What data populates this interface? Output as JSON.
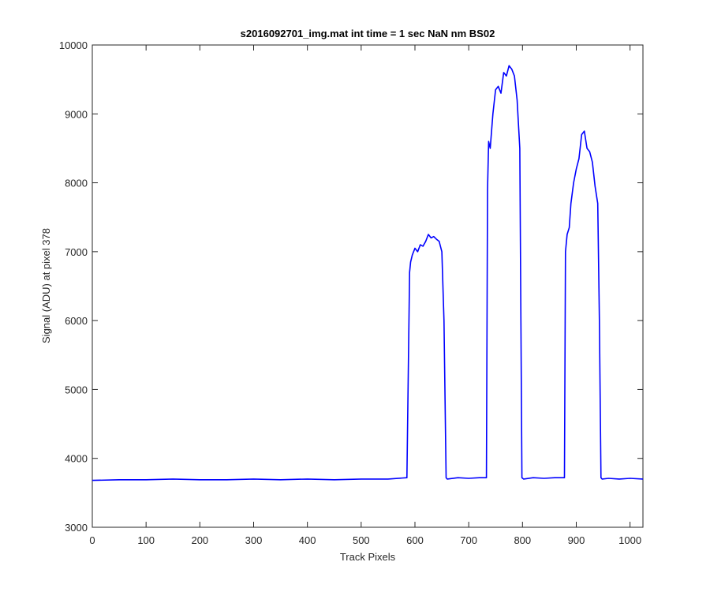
{
  "chart_data": {
    "type": "line",
    "title": "s2016092701_img.mat int time = 1 sec  NaN nm BS02",
    "xlabel": "Track Pixels",
    "ylabel": "Signal (ADU) at pixel 378",
    "xlim": [
      0,
      1024
    ],
    "ylim": [
      3000,
      10000
    ],
    "xticks": [
      0,
      100,
      200,
      300,
      400,
      500,
      600,
      700,
      800,
      900,
      1000
    ],
    "yticks": [
      3000,
      4000,
      5000,
      6000,
      7000,
      8000,
      9000,
      10000
    ],
    "grid": false,
    "legend": "none",
    "series": [
      {
        "color": "#0000ff",
        "x": [
          0,
          50,
          100,
          150,
          200,
          250,
          300,
          350,
          400,
          450,
          500,
          550,
          585,
          590,
          592,
          595,
          600,
          605,
          610,
          615,
          620,
          625,
          630,
          635,
          640,
          645,
          650,
          654,
          658,
          660,
          680,
          700,
          720,
          733,
          735,
          737,
          740,
          745,
          750,
          755,
          760,
          765,
          770,
          775,
          780,
          785,
          790,
          795,
          797,
          799,
          802,
          820,
          840,
          860,
          878,
          880,
          883,
          887,
          890,
          895,
          900,
          905,
          910,
          915,
          920,
          925,
          930,
          935,
          940,
          943,
          946,
          948,
          960,
          980,
          1000,
          1024
        ],
        "y": [
          3680,
          3690,
          3690,
          3700,
          3690,
          3690,
          3700,
          3690,
          3700,
          3690,
          3700,
          3700,
          3720,
          6700,
          6850,
          6950,
          7050,
          7000,
          7100,
          7080,
          7150,
          7250,
          7200,
          7220,
          7180,
          7150,
          7000,
          6000,
          3720,
          3700,
          3720,
          3710,
          3720,
          3720,
          7900,
          8600,
          8500,
          9000,
          9350,
          9400,
          9300,
          9600,
          9550,
          9700,
          9650,
          9550,
          9200,
          8500,
          6000,
          3720,
          3700,
          3720,
          3710,
          3720,
          3720,
          7000,
          7250,
          7350,
          7700,
          8000,
          8200,
          8350,
          8700,
          8750,
          8500,
          8450,
          8300,
          7950,
          7700,
          6000,
          3720,
          3700,
          3710,
          3700,
          3710,
          3700
        ]
      }
    ]
  }
}
